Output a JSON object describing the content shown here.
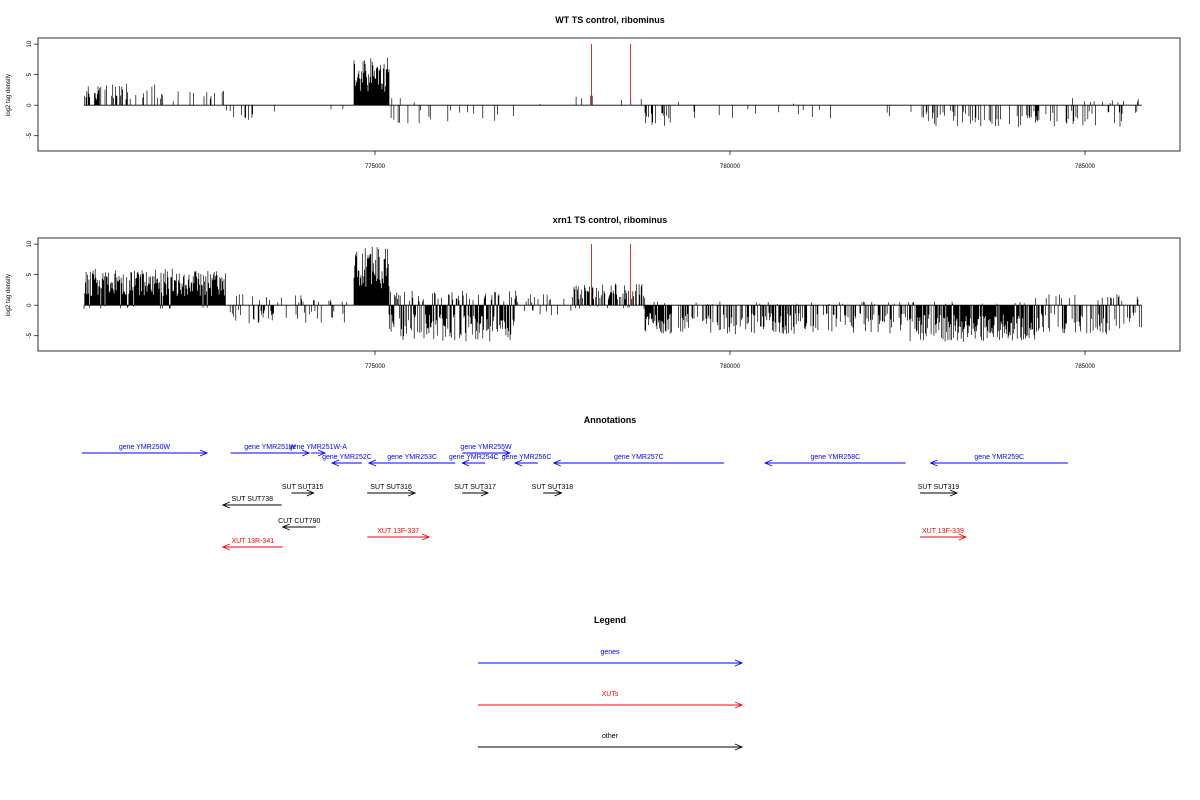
{
  "colors": {
    "gene": "#0000ff",
    "xut": "#ff0000",
    "other": "#000000",
    "marker": "#b22222"
  },
  "chart_data": [
    {
      "type": "bar",
      "title": "WT TS control, ribominus",
      "ylabel": "log2 tag density",
      "xlim": [
        770000,
        786000
      ],
      "ylim": [
        -7.5,
        11
      ],
      "xticks": [
        775000,
        780000,
        785000
      ],
      "xtick_labels": [
        "775000",
        "780000",
        "785000"
      ],
      "yticks": [
        -5,
        0,
        5,
        10
      ],
      "ytick_labels": [
        "-5",
        "0",
        "5",
        "10"
      ],
      "markers": [
        {
          "x": 778050,
          "y": 10
        },
        {
          "x": 778600,
          "y": 10
        }
      ],
      "signal_regions": [
        {
          "x0": 770900,
          "x1": 772000,
          "amp_pos": 3.0,
          "amp_neg": 0,
          "density": 0.25
        },
        {
          "x0": 772000,
          "x1": 772900,
          "amp_pos": 2.0,
          "amp_neg": 0,
          "density": 0.12
        },
        {
          "x0": 772900,
          "x1": 773300,
          "amp_pos": 0,
          "amp_neg": 2.0,
          "density": 0.2
        },
        {
          "x0": 773300,
          "x1": 774700,
          "amp_pos": 1.0,
          "amp_neg": 1.0,
          "density": 0.05
        },
        {
          "x0": 774700,
          "x1": 775200,
          "amp_pos": 6.5,
          "amp_neg": 0,
          "density": 1.0
        },
        {
          "x0": 775200,
          "x1": 777000,
          "amp_pos": 1.0,
          "amp_neg": 2.5,
          "density": 0.1
        },
        {
          "x0": 777000,
          "x1": 777800,
          "amp_pos": 0.5,
          "amp_neg": 1.0,
          "density": 0.02
        },
        {
          "x0": 777800,
          "x1": 778800,
          "amp_pos": 1.5,
          "amp_neg": 0,
          "density": 0.12
        },
        {
          "x0": 778800,
          "x1": 779200,
          "amp_pos": 0,
          "amp_neg": 3.5,
          "density": 0.35
        },
        {
          "x0": 779200,
          "x1": 782700,
          "amp_pos": 0.5,
          "amp_neg": 2.0,
          "density": 0.04
        },
        {
          "x0": 782700,
          "x1": 784500,
          "amp_pos": 0,
          "amp_neg": 3.0,
          "density": 0.35
        },
        {
          "x0": 784500,
          "x1": 785800,
          "amp_pos": 1.0,
          "amp_neg": 3.0,
          "density": 0.3
        }
      ]
    },
    {
      "type": "bar",
      "title": "xrn1 TS control, ribominus",
      "ylabel": "log2 tag density",
      "xlim": [
        770000,
        786000
      ],
      "ylim": [
        -7.5,
        11
      ],
      "xticks": [
        775000,
        780000,
        785000
      ],
      "xtick_labels": [
        "775000",
        "780000",
        "785000"
      ],
      "yticks": [
        -5,
        0,
        5,
        10
      ],
      "ytick_labels": [
        "-5",
        "0",
        "5",
        "10"
      ],
      "markers": [
        {
          "x": 778050,
          "y": 10
        },
        {
          "x": 778600,
          "y": 10
        }
      ],
      "signal_regions": [
        {
          "x0": 770900,
          "x1": 772900,
          "amp_pos": 5.0,
          "amp_neg": 0.5,
          "density": 1.0
        },
        {
          "x0": 772900,
          "x1": 774700,
          "amp_pos": 1.5,
          "amp_neg": 2.5,
          "density": 0.3
        },
        {
          "x0": 774700,
          "x1": 775200,
          "amp_pos": 8.0,
          "amp_neg": 0,
          "density": 1.0
        },
        {
          "x0": 775200,
          "x1": 777000,
          "amp_pos": 2.0,
          "amp_neg": 5.0,
          "density": 0.9
        },
        {
          "x0": 777000,
          "x1": 777800,
          "amp_pos": 1.5,
          "amp_neg": 2.0,
          "density": 0.3
        },
        {
          "x0": 777800,
          "x1": 778800,
          "amp_pos": 3.0,
          "amp_neg": 0.5,
          "density": 0.6
        },
        {
          "x0": 778800,
          "x1": 779200,
          "amp_pos": 0.5,
          "amp_neg": 4.0,
          "density": 0.9
        },
        {
          "x0": 779200,
          "x1": 782500,
          "amp_pos": 0.5,
          "amp_neg": 4.0,
          "density": 0.5
        },
        {
          "x0": 782500,
          "x1": 784300,
          "amp_pos": 0.5,
          "amp_neg": 5.0,
          "density": 0.9
        },
        {
          "x0": 784300,
          "x1": 785800,
          "amp_pos": 1.5,
          "amp_neg": 4.0,
          "density": 0.6
        }
      ]
    }
  ],
  "annotations": {
    "title": "Annotations",
    "features": [
      {
        "label": "gene YMR250W",
        "type": "gene",
        "start": 770000,
        "end": 773550,
        "strand": "+",
        "row": 0
      },
      {
        "label": "gene YMR251W",
        "type": "gene",
        "start": 774220,
        "end": 776450,
        "strand": "+",
        "row": 0
      },
      {
        "label": "gene YMR251W-A",
        "type": "gene",
        "start": 776500,
        "end": 776900,
        "strand": "+",
        "row": 0
      },
      {
        "label": "gene YMR252C",
        "type": "gene",
        "start": 777100,
        "end": 777950,
        "strand": "-",
        "row": 1
      },
      {
        "label": "gene YMR253C",
        "type": "gene",
        "start": 778150,
        "end": 780600,
        "strand": "-",
        "row": 1
      },
      {
        "label": "gene YMR254C",
        "type": "gene",
        "start": 780800,
        "end": 781450,
        "strand": "-",
        "row": 1
      },
      {
        "label": "gene YMR255W",
        "type": "gene",
        "start": 780800,
        "end": 782150,
        "strand": "+",
        "row": 0
      },
      {
        "label": "gene YMR256C",
        "type": "gene",
        "start": 782300,
        "end": 782950,
        "strand": "-",
        "row": 1
      },
      {
        "label": "gene YMR257C",
        "type": "gene",
        "start": 783400,
        "end": 788230,
        "strand": "-",
        "row": 1
      },
      {
        "label": "gene YMR258C",
        "type": "gene",
        "start": 789400,
        "end": 793390,
        "strand": "-",
        "row": 1
      },
      {
        "label": "gene YMR259C",
        "type": "gene",
        "start": 794100,
        "end": 798000,
        "strand": "-",
        "row": 1
      },
      {
        "label": "SUT SUT738",
        "type": "other",
        "start": 774000,
        "end": 775670,
        "strand": "-",
        "row": 3
      },
      {
        "label": "SUT SUT315",
        "type": "other",
        "start": 775950,
        "end": 776580,
        "strand": "+",
        "row": 2
      },
      {
        "label": "SUT SUT316",
        "type": "other",
        "start": 778100,
        "end": 779460,
        "strand": "+",
        "row": 2
      },
      {
        "label": "SUT SUT317",
        "type": "other",
        "start": 780800,
        "end": 781530,
        "strand": "+",
        "row": 2
      },
      {
        "label": "SUT SUT318",
        "type": "other",
        "start": 783100,
        "end": 783620,
        "strand": "+",
        "row": 2
      },
      {
        "label": "SUT SUT319",
        "type": "other",
        "start": 793800,
        "end": 794850,
        "strand": "+",
        "row": 2
      },
      {
        "label": "CUT CUT790",
        "type": "other",
        "start": 775700,
        "end": 776640,
        "strand": "-",
        "row": 4
      },
      {
        "label": "XUT 13R-341",
        "type": "xut",
        "start": 774000,
        "end": 775700,
        "strand": "-",
        "row": 6
      },
      {
        "label": "XUT 13F-337",
        "type": "xut",
        "start": 778100,
        "end": 779860,
        "strand": "+",
        "row": 5
      },
      {
        "label": "XUT 13F-339",
        "type": "xut",
        "start": 793800,
        "end": 795100,
        "strand": "+",
        "row": 5
      }
    ]
  },
  "legend": {
    "title": "Legend",
    "items": [
      {
        "label": "genes",
        "type": "gene"
      },
      {
        "label": "XUTs",
        "type": "xut"
      },
      {
        "label": "other",
        "type": "other"
      }
    ]
  }
}
